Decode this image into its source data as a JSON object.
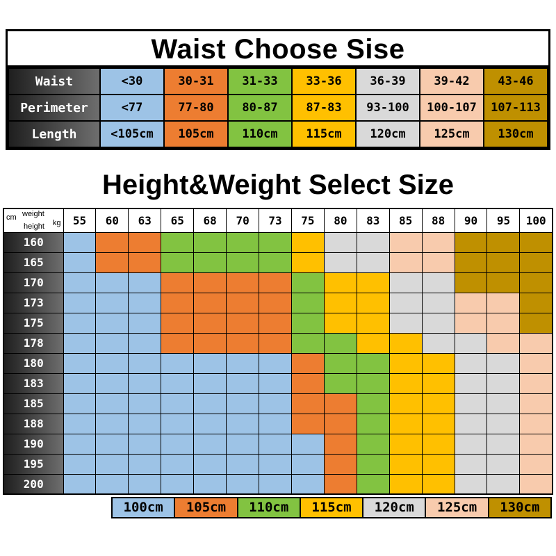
{
  "colors": {
    "blue": "#9DC3E6",
    "orange": "#ED7D31",
    "green": "#82C341",
    "yellow": "#FFC000",
    "gray": "#D9D9D9",
    "peach": "#F8CBAD",
    "gold": "#BF9000",
    "header_gradient_start": "#1F1F1F",
    "header_gradient_end": "#6E6E6E",
    "grid_line": "#000000",
    "background": "#FFFFFF"
  },
  "size_codes": {
    "B": {
      "size": "100cm",
      "color": "blue"
    },
    "O": {
      "size": "105cm",
      "color": "orange"
    },
    "G": {
      "size": "110cm",
      "color": "green"
    },
    "Y": {
      "size": "115cm",
      "color": "yellow"
    },
    "E": {
      "size": "120cm",
      "color": "gray"
    },
    "P": {
      "size": "125cm",
      "color": "peach"
    },
    "D": {
      "size": "130cm",
      "color": "gold"
    }
  },
  "chart_data": [
    {
      "type": "table",
      "title": "Waist Choose Sise",
      "column_colors": [
        "blue",
        "orange",
        "green",
        "yellow",
        "gray",
        "peach",
        "gold"
      ],
      "rows": [
        {
          "label": "Waist",
          "values": [
            "<30",
            "30-31",
            "31-33",
            "33-36",
            "36-39",
            "39-42",
            "43-46"
          ]
        },
        {
          "label": "Perimeter",
          "values": [
            "<77",
            "77-80",
            "80-87",
            "87-83",
            "93-100",
            "100-107",
            "107-113"
          ]
        },
        {
          "label": "Length",
          "values": [
            "<105cm",
            "105cm",
            "110cm",
            "115cm",
            "120cm",
            "125cm",
            "130cm"
          ]
        }
      ]
    },
    {
      "type": "heatmap",
      "title": "Height&Weight Select Size",
      "corner_labels": {
        "weight": "weight",
        "kg": "kg",
        "cm": "cm",
        "height": "height"
      },
      "x_weights_kg": [
        "55",
        "60",
        "63",
        "65",
        "68",
        "70",
        "73",
        "75",
        "80",
        "83",
        "85",
        "88",
        "90",
        "95",
        "100"
      ],
      "y_heights_cm": [
        "160",
        "165",
        "170",
        "173",
        "175",
        "178",
        "180",
        "183",
        "185",
        "188",
        "190",
        "195",
        "200"
      ],
      "cell_size_codes": [
        "BOOGGGGYEEPPDDD",
        "BOOGGGGYEEPPDDD",
        "BBBOOOOGYYEEDDD",
        "BBBOOOOGYYEEPPD",
        "BBBOOOOGYYEEPPD",
        "BBBOOOOGGYYEEPP",
        "BBBBBBBOGGYYEEP",
        "BBBBBBBOGGYYEEP",
        "BBBBBBBOOGYYEEP",
        "BBBBBBBOOGYYEEP",
        "BBBBBBBBOGYYEEP",
        "BBBBBBBBOGYYEEP",
        "BBBBBBBBOGYYEEP"
      ],
      "legend": [
        {
          "label": "100cm",
          "color": "blue"
        },
        {
          "label": "105cm",
          "color": "orange"
        },
        {
          "label": "110cm",
          "color": "green"
        },
        {
          "label": "115cm",
          "color": "yellow"
        },
        {
          "label": "120cm",
          "color": "gray"
        },
        {
          "label": "125cm",
          "color": "peach"
        },
        {
          "label": "130cm",
          "color": "gold"
        }
      ]
    }
  ]
}
